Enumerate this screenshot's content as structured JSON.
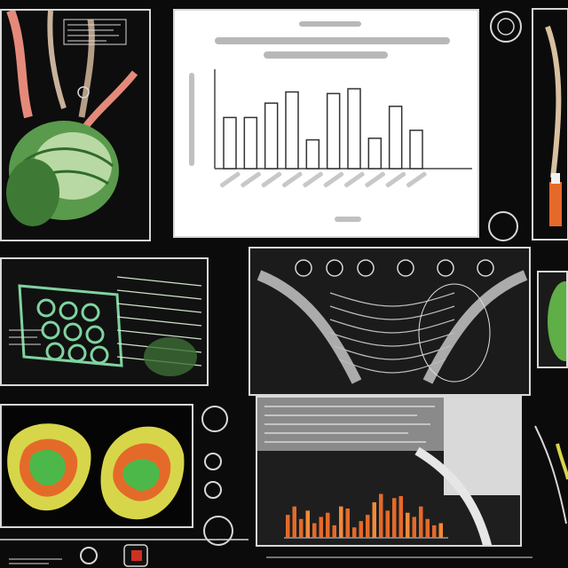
{
  "image": {
    "kind": "generated-collage",
    "colors": {
      "background": "#0b0b0b",
      "frame": "#d8d8d8",
      "green": "#5a9a4c",
      "light_green": "#9fd98a",
      "orange": "#e46a2a",
      "yellow": "#d7d64a",
      "gray": "#9a9a9a"
    }
  },
  "top_chart": {
    "chart_data": {
      "type": "bar",
      "categories": [
        "",
        "",
        "",
        "",
        "",
        "",
        "",
        "",
        "",
        "",
        "",
        ""
      ],
      "values": [
        32,
        32,
        41,
        48,
        18,
        47,
        50,
        19,
        39,
        24,
        0,
        0
      ],
      "ylim": [
        0,
        60
      ]
    }
  },
  "bottom_chart": {
    "chart_data": {
      "type": "bar",
      "values": [
        22,
        30,
        18,
        26,
        14,
        20,
        24,
        12,
        30,
        28,
        10,
        16,
        22,
        34,
        42,
        26,
        38,
        40,
        24,
        20,
        30,
        18,
        12,
        14
      ],
      "ylim": [
        0,
        45
      ]
    }
  },
  "icons": [
    "circle-icon",
    "circle-icon",
    "circle-icon",
    "circle-icon",
    "circle-icon",
    "circle-icon"
  ]
}
